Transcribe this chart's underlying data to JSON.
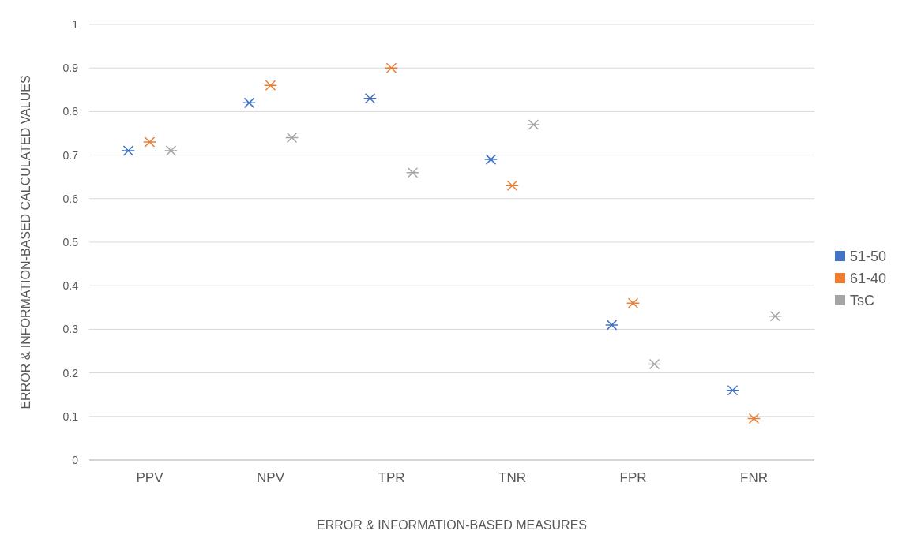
{
  "chart_data": {
    "type": "scatter",
    "xlabel": "ERROR & INFORMATION-BASED MEASURES",
    "ylabel": "ERROR & INFORMATION-BASED CALCULATED VALUES",
    "categories": [
      "PPV",
      "NPV",
      "TPR",
      "TNR",
      "FPR",
      "FNR"
    ],
    "series": [
      {
        "name": "51-50",
        "color": "#4472c4",
        "values": [
          0.71,
          0.82,
          0.83,
          0.69,
          0.31,
          0.16
        ]
      },
      {
        "name": "61-40",
        "color": "#ed7d31",
        "values": [
          0.73,
          0.86,
          0.9,
          0.63,
          0.36,
          0.095
        ]
      },
      {
        "name": "TsC",
        "color": "#a5a5a5",
        "values": [
          0.71,
          0.74,
          0.66,
          0.77,
          0.22,
          0.33
        ]
      }
    ],
    "ylim": [
      0,
      1
    ],
    "yticks": [
      0,
      0.1,
      0.2,
      0.3,
      0.4,
      0.5,
      0.6,
      0.7,
      0.8,
      0.9,
      1
    ],
    "grid": "y",
    "legend": "right",
    "marker": "cross"
  }
}
